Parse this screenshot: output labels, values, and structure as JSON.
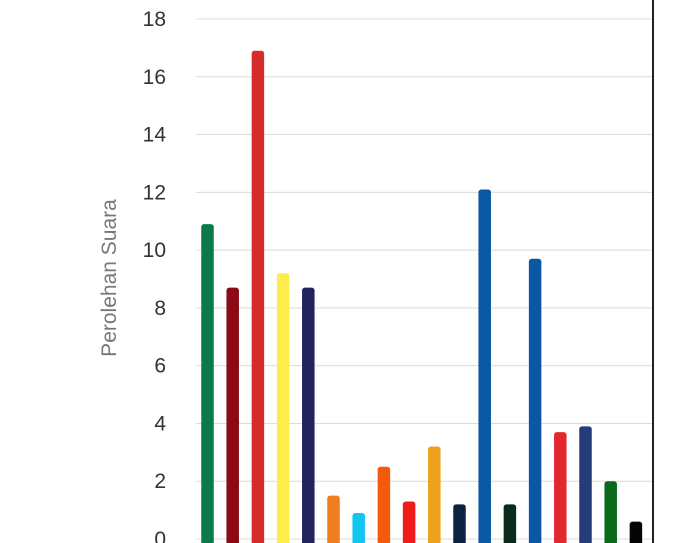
{
  "chart_data": {
    "type": "bar",
    "ylabel": "Perolehan Suara",
    "ylim": [
      0,
      18
    ],
    "yticks": [
      0,
      2,
      4,
      6,
      8,
      10,
      12,
      14,
      16,
      18
    ],
    "grid": true,
    "legend": "none",
    "values": [
      10.9,
      8.7,
      16.9,
      9.2,
      8.7,
      1.5,
      0.9,
      2.5,
      1.3,
      3.2,
      1.2,
      12.1,
      1.2,
      9.7,
      3.7,
      3.9,
      2.0,
      0.6
    ],
    "colors": [
      "#0b7a4b",
      "#8b0a16",
      "#d82b2b",
      "#fcec4c",
      "#22235a",
      "#f07d1e",
      "#12c6f0",
      "#f45a0c",
      "#f01c1c",
      "#eda11c",
      "#0b2340",
      "#0a57a6",
      "#082b1c",
      "#0a57a6",
      "#e2272f",
      "#243c7a",
      "#0a6a1a",
      "#050505"
    ]
  }
}
